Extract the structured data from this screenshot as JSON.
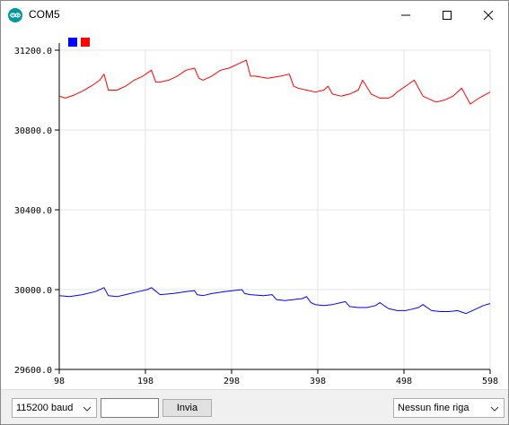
{
  "window": {
    "title": "COM5",
    "icon": "arduino-logo-icon",
    "controls": [
      "minimize-icon",
      "maximize-icon",
      "close-icon"
    ]
  },
  "legend_colors": [
    "#0000ff",
    "#ff0000"
  ],
  "chart_data": {
    "type": "line",
    "ylim": [
      29600,
      31200
    ],
    "xlim": [
      98,
      598
    ],
    "y_ticks": [
      "31200.0",
      "30800.0",
      "30400.0",
      "30000.0",
      "29600.0"
    ],
    "x_ticks": [
      "98",
      "198",
      "298",
      "398",
      "498",
      "598"
    ],
    "grid": true,
    "legend": "top-left",
    "series": [
      {
        "color": "#0000ff",
        "x": [
          98,
          110,
          125,
          140,
          150,
          155,
          165,
          175,
          190,
          200,
          205,
          215,
          230,
          245,
          255,
          258,
          265,
          275,
          290,
          300,
          310,
          313,
          320,
          335,
          345,
          350,
          360,
          370,
          380,
          385,
          390,
          395,
          405,
          415,
          425,
          430,
          435,
          445,
          455,
          465,
          470,
          480,
          490,
          500,
          505,
          515,
          520,
          530,
          540,
          550,
          560,
          570,
          580,
          590,
          598
        ],
        "values": [
          29970,
          29965,
          29975,
          29990,
          30010,
          29970,
          29965,
          29975,
          29990,
          30000,
          30010,
          29975,
          29980,
          29990,
          29995,
          29975,
          29970,
          29980,
          29990,
          29995,
          30000,
          29980,
          29975,
          29970,
          29975,
          29950,
          29945,
          29950,
          29955,
          29965,
          29935,
          29925,
          29920,
          29925,
          29935,
          29940,
          29915,
          29910,
          29910,
          29920,
          29935,
          29905,
          29895,
          29895,
          29900,
          29910,
          29925,
          29895,
          29890,
          29890,
          29895,
          29880,
          29900,
          29920,
          29930
        ]
      },
      {
        "color": "#ff0000",
        "x": [
          98,
          105,
          115,
          125,
          135,
          145,
          150,
          155,
          165,
          175,
          185,
          195,
          205,
          210,
          215,
          225,
          235,
          245,
          255,
          260,
          265,
          275,
          285,
          295,
          305,
          315,
          320,
          325,
          340,
          355,
          365,
          370,
          375,
          385,
          395,
          405,
          410,
          415,
          425,
          435,
          445,
          450,
          460,
          470,
          480,
          485,
          490,
          500,
          510,
          520,
          530,
          535,
          545,
          555,
          565,
          575,
          585,
          598
        ],
        "values": [
          30970,
          30960,
          30975,
          30995,
          31020,
          31050,
          31080,
          31000,
          31000,
          31020,
          31050,
          31070,
          31100,
          31040,
          31040,
          31050,
          31070,
          31100,
          31110,
          31060,
          31050,
          31070,
          31100,
          31110,
          31130,
          31150,
          31070,
          31070,
          31060,
          31070,
          31080,
          31020,
          31010,
          31000,
          30990,
          31000,
          31020,
          30980,
          30970,
          30980,
          31000,
          31050,
          30980,
          30960,
          30960,
          30970,
          30990,
          31020,
          31050,
          30970,
          30950,
          30940,
          30950,
          30970,
          31010,
          30930,
          30960,
          30990
        ]
      }
    ]
  },
  "bottom_bar": {
    "baud_label": "115200 baud",
    "send_input_value": "",
    "send_button_label": "Invia",
    "line_ending_label": "Nessun fine riga"
  }
}
